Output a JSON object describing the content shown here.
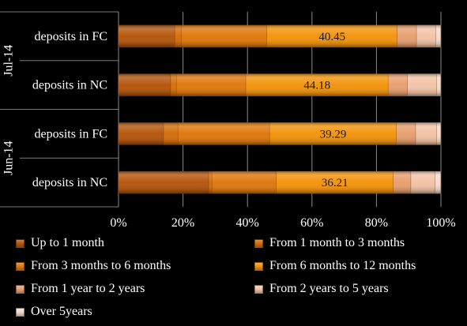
{
  "chart_data": {
    "type": "bar",
    "orientation": "horizontal",
    "stacking": "percent",
    "groups": [
      {
        "label": "Jul-14",
        "bars": [
          {
            "label": "deposits in FC",
            "shares": [
              17.5,
              2.0,
              26.5,
              40.45,
              6.0,
              6.0,
              1.55
            ],
            "data_label": "40.45"
          },
          {
            "label": "deposits in NC",
            "shares": [
              16.2,
              1.8,
              21.5,
              44.18,
              6.0,
              9.0,
              1.32
            ],
            "data_label": "44.18"
          }
        ]
      },
      {
        "label": "Jun-14",
        "bars": [
          {
            "label": "deposits in FC",
            "shares": [
              14.0,
              4.5,
              28.4,
              39.29,
              6.0,
              6.5,
              1.31
            ],
            "data_label": "39.29"
          },
          {
            "label": "deposits in NC",
            "shares": [
              28.0,
              1.0,
              20.0,
              36.21,
              5.5,
              7.5,
              1.79
            ],
            "data_label": "36.21"
          }
        ]
      }
    ],
    "series": [
      {
        "name": "Up to 1 month",
        "color": "#b5580f"
      },
      {
        "name": "From 1 month to 3 months",
        "color": "#d4700c"
      },
      {
        "name": "From 3 months to 6 months",
        "color": "#e07a10"
      },
      {
        "name": "From 6 months to 12 months",
        "color": "#f3950f"
      },
      {
        "name": "From 1 year to 2 years",
        "color": "#e8a070"
      },
      {
        "name": "From 2 years to 5 years",
        "color": "#f2c4a8"
      },
      {
        "name": "Over 5years",
        "color": "#f5dccd"
      }
    ],
    "x_ticks": [
      "0%",
      "20%",
      "40%",
      "60%",
      "80%",
      "100%"
    ],
    "xlim": [
      0,
      100
    ],
    "grid": true,
    "legend_position": "bottom"
  }
}
